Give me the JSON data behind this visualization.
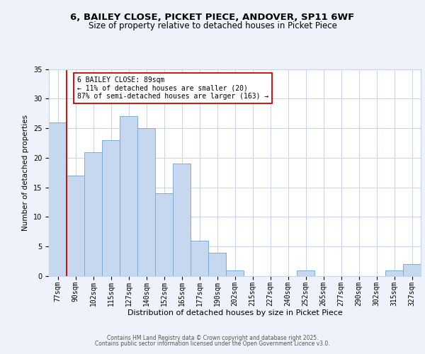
{
  "title_line1": "6, BAILEY CLOSE, PICKET PIECE, ANDOVER, SP11 6WF",
  "title_line2": "Size of property relative to detached houses in Picket Piece",
  "xlabel": "Distribution of detached houses by size in Picket Piece",
  "ylabel": "Number of detached properties",
  "bar_labels": [
    "77sqm",
    "90sqm",
    "102sqm",
    "115sqm",
    "127sqm",
    "140sqm",
    "152sqm",
    "165sqm",
    "177sqm",
    "190sqm",
    "202sqm",
    "215sqm",
    "227sqm",
    "240sqm",
    "252sqm",
    "265sqm",
    "277sqm",
    "290sqm",
    "302sqm",
    "315sqm",
    "327sqm"
  ],
  "bar_values": [
    26,
    17,
    21,
    23,
    27,
    25,
    14,
    19,
    6,
    4,
    1,
    0,
    0,
    0,
    1,
    0,
    0,
    0,
    0,
    1,
    2
  ],
  "bar_color": "#c5d8f0",
  "bar_edge_color": "#7bafd4",
  "vline_color": "#cc0000",
  "annotation_text": "6 BAILEY CLOSE: 89sqm\n← 11% of detached houses are smaller (20)\n87% of semi-detached houses are larger (163) →",
  "annotation_box_color": "#ffffff",
  "annotation_box_edge_color": "#cc0000",
  "ylim": [
    0,
    35
  ],
  "yticks": [
    0,
    5,
    10,
    15,
    20,
    25,
    30,
    35
  ],
  "bg_color": "#eef2fb",
  "plot_bg_color": "#ffffff",
  "footer_line1": "Contains HM Land Registry data © Crown copyright and database right 2025.",
  "footer_line2": "Contains public sector information licensed under the Open Government Licence v3.0.",
  "grid_color": "#c8d4e8",
  "title_fontsize": 9.5,
  "subtitle_fontsize": 8.5,
  "tick_fontsize": 7,
  "xlabel_fontsize": 8,
  "ylabel_fontsize": 7.5,
  "annotation_fontsize": 7,
  "footer_fontsize": 5.5
}
